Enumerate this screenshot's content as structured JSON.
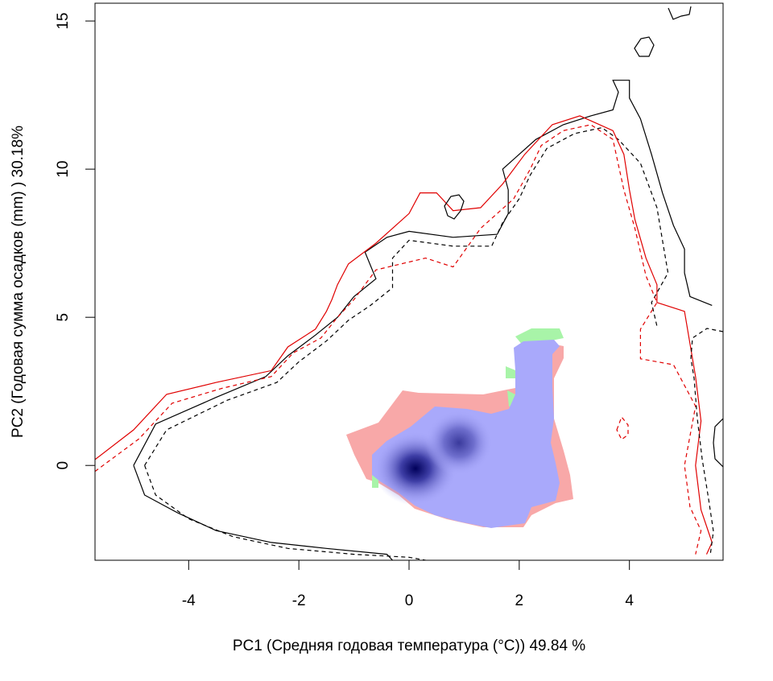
{
  "chart_data": {
    "type": "contour-density",
    "title": "",
    "xlabel": "PC1 (Средняя годовая температура (°C)) 49.84 %",
    "ylabel": "PC2 (Годовая сумма осадков  (mm) ) 30.18%",
    "xlim": [
      -5.7,
      5.7
    ],
    "ylim": [
      -3.2,
      15.6
    ],
    "xticks": [
      "-4",
      "-2",
      "0",
      "2",
      "4"
    ],
    "yticks": [
      "0",
      "5",
      "10",
      "15"
    ],
    "grid": false,
    "legend": "none",
    "colors": {
      "contour_a": "#000000",
      "contour_b": "#e00000",
      "overlap": "#a9a9fb",
      "only_b": "#f8a8a8",
      "only_a": "#a8f4a8",
      "density_peak": "#00005a"
    },
    "series": [
      {
        "style": "black-solid",
        "values": [
          [
            -5.0,
            0.0
          ],
          [
            -4.8,
            -1.0
          ],
          [
            -4.2,
            -1.6
          ],
          [
            -3.5,
            -2.2
          ],
          [
            -2.5,
            -2.6
          ],
          [
            -1.5,
            -2.8
          ],
          [
            -0.4,
            -3.0
          ],
          [
            -0.3,
            -3.2
          ]
        ]
      },
      {
        "style": "black-dashed",
        "values": [
          [
            -4.8,
            0.0
          ],
          [
            -4.6,
            -1.0
          ],
          [
            -4.0,
            -1.8
          ],
          [
            -3.2,
            -2.4
          ],
          [
            -2.2,
            -2.8
          ],
          [
            -1.0,
            -3.0
          ],
          [
            0.0,
            -3.1
          ],
          [
            0.3,
            -3.2
          ]
        ]
      },
      {
        "style": "black-solid",
        "values": [
          [
            -5.0,
            0.0
          ],
          [
            -4.6,
            1.4
          ],
          [
            -3.5,
            2.3
          ],
          [
            -2.6,
            3.0
          ],
          [
            -2.2,
            3.7
          ],
          [
            -1.7,
            4.4
          ],
          [
            -1.3,
            5.0
          ],
          [
            -1.0,
            5.7
          ],
          [
            -0.6,
            6.3
          ],
          [
            -0.8,
            7.2
          ],
          [
            -0.4,
            7.7
          ],
          [
            0.0,
            7.9
          ],
          [
            0.8,
            7.7
          ],
          [
            1.6,
            7.8
          ],
          [
            1.8,
            8.5
          ],
          [
            1.8,
            9.3
          ],
          [
            1.7,
            10.0
          ],
          [
            2.0,
            10.5
          ],
          [
            2.3,
            11.0
          ],
          [
            2.8,
            11.5
          ],
          [
            3.3,
            11.8
          ],
          [
            3.7,
            12.0
          ],
          [
            3.8,
            12.6
          ],
          [
            3.7,
            13.0
          ],
          [
            4.0,
            13.0
          ],
          [
            4.0,
            12.4
          ],
          [
            4.2,
            11.7
          ],
          [
            4.4,
            10.5
          ],
          [
            4.6,
            9.2
          ],
          [
            4.8,
            8.1
          ],
          [
            5.0,
            7.3
          ],
          [
            5.0,
            6.5
          ],
          [
            5.1,
            5.7
          ],
          [
            5.5,
            5.4
          ]
        ]
      },
      {
        "style": "black-dashed",
        "values": [
          [
            -4.8,
            0.0
          ],
          [
            -4.4,
            1.2
          ],
          [
            -3.3,
            2.2
          ],
          [
            -2.4,
            2.8
          ],
          [
            -2.0,
            3.5
          ],
          [
            -1.5,
            4.2
          ],
          [
            -1.1,
            4.9
          ],
          [
            -0.7,
            5.4
          ],
          [
            -0.3,
            6.0
          ],
          [
            -0.3,
            7.0
          ],
          [
            0.0,
            7.6
          ],
          [
            0.8,
            7.4
          ],
          [
            1.5,
            7.4
          ],
          [
            1.7,
            8.2
          ],
          [
            2.0,
            9.0
          ],
          [
            2.2,
            9.8
          ],
          [
            2.5,
            10.7
          ],
          [
            3.0,
            11.2
          ],
          [
            3.5,
            11.4
          ],
          [
            3.8,
            11.0
          ],
          [
            4.2,
            10.2
          ],
          [
            4.5,
            8.7
          ],
          [
            4.6,
            7.6
          ],
          [
            4.7,
            6.5
          ],
          [
            4.4,
            5.5
          ],
          [
            4.5,
            4.7
          ]
        ]
      },
      {
        "style": "red-solid",
        "values": [
          [
            -5.7,
            0.2
          ],
          [
            -5.0,
            1.2
          ],
          [
            -4.4,
            2.4
          ],
          [
            -3.5,
            2.8
          ],
          [
            -2.5,
            3.2
          ],
          [
            -2.2,
            4.0
          ],
          [
            -1.7,
            4.6
          ],
          [
            -1.5,
            5.2
          ],
          [
            -1.4,
            5.6
          ],
          [
            -1.3,
            6.1
          ],
          [
            -1.1,
            6.8
          ],
          [
            -0.6,
            7.5
          ],
          [
            0.0,
            8.5
          ],
          [
            0.2,
            9.2
          ],
          [
            0.5,
            9.2
          ],
          [
            0.8,
            8.6
          ],
          [
            1.3,
            8.7
          ],
          [
            1.7,
            9.5
          ],
          [
            2.1,
            10.5
          ],
          [
            2.6,
            11.5
          ],
          [
            3.1,
            11.8
          ],
          [
            3.7,
            11.3
          ],
          [
            3.9,
            10.5
          ],
          [
            4.0,
            9.3
          ],
          [
            4.1,
            8.3
          ],
          [
            4.3,
            7.0
          ],
          [
            4.5,
            6.1
          ],
          [
            4.5,
            5.5
          ],
          [
            5.0,
            5.2
          ],
          [
            5.2,
            3.0
          ],
          [
            5.3,
            1.5
          ],
          [
            5.2,
            0.0
          ],
          [
            5.3,
            -1.5
          ],
          [
            5.5,
            -2.6
          ],
          [
            5.4,
            -3.0
          ]
        ]
      },
      {
        "style": "red-dashed",
        "values": [
          [
            -5.7,
            -0.2
          ],
          [
            -4.9,
            0.9
          ],
          [
            -4.3,
            2.1
          ],
          [
            -3.4,
            2.6
          ],
          [
            -2.5,
            3.0
          ],
          [
            -2.1,
            3.8
          ],
          [
            -1.6,
            4.3
          ],
          [
            -1.3,
            5.0
          ],
          [
            -1.0,
            5.6
          ],
          [
            -0.6,
            6.6
          ],
          [
            0.3,
            7.0
          ],
          [
            0.8,
            6.7
          ],
          [
            1.3,
            8.0
          ],
          [
            1.9,
            9.0
          ],
          [
            2.2,
            10.0
          ],
          [
            2.4,
            10.8
          ],
          [
            2.8,
            11.3
          ],
          [
            3.3,
            11.5
          ],
          [
            3.7,
            11.0
          ],
          [
            3.9,
            9.3
          ],
          [
            4.1,
            8.0
          ],
          [
            4.3,
            6.4
          ],
          [
            4.5,
            5.5
          ],
          [
            4.2,
            4.6
          ],
          [
            4.2,
            3.6
          ],
          [
            4.8,
            3.4
          ],
          [
            5.2,
            2.0
          ],
          [
            5.0,
            0.0
          ],
          [
            5.1,
            -1.4
          ],
          [
            5.3,
            -2.2
          ],
          [
            5.2,
            -3.0
          ]
        ]
      }
    ]
  }
}
